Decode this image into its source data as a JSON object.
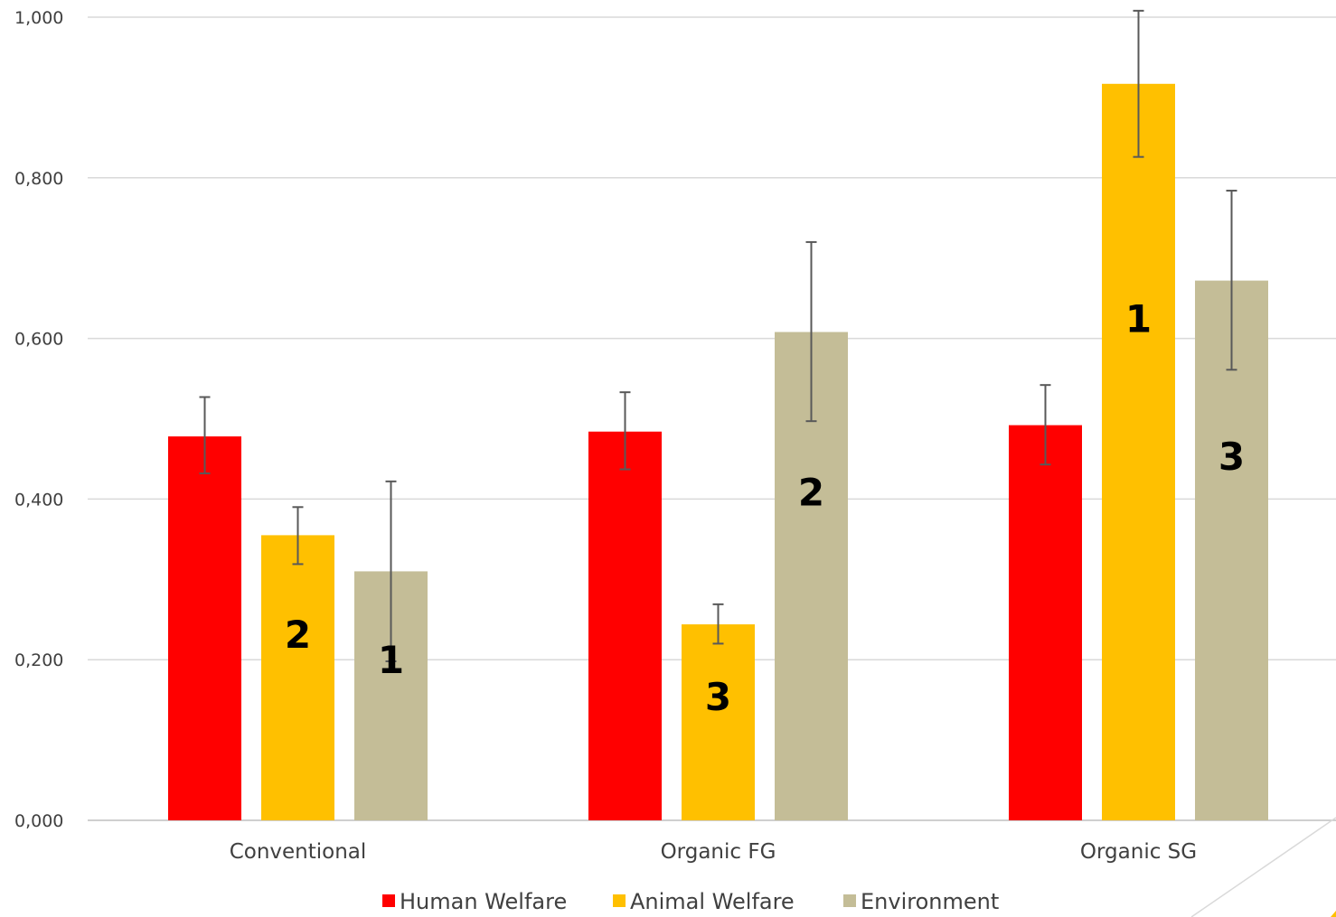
{
  "chart_data": {
    "type": "bar",
    "categories": [
      "Conventional",
      "Organic FG",
      "Organic SG"
    ],
    "series": [
      {
        "name": "Human Welfare",
        "color": "#FF0000",
        "values": [
          0.478,
          0.484,
          0.492
        ],
        "error_low": [
          0.432,
          0.437,
          0.443
        ],
        "error_high": [
          0.527,
          0.533,
          0.542
        ],
        "rank_labels": [
          "",
          "",
          ""
        ]
      },
      {
        "name": "Animal Welfare",
        "color": "#FFC000",
        "values": [
          0.355,
          0.244,
          0.917
        ],
        "error_low": [
          0.319,
          0.22,
          0.826
        ],
        "error_high": [
          0.39,
          0.269,
          1.008
        ],
        "rank_labels": [
          "2",
          "3",
          "1"
        ]
      },
      {
        "name": "Environment",
        "color": "#C4BD97",
        "values": [
          0.31,
          0.608,
          0.672
        ],
        "error_low": [
          0.198,
          0.497,
          0.561
        ],
        "error_high": [
          0.422,
          0.72,
          0.784
        ],
        "rank_labels": [
          "1",
          "2",
          "3"
        ]
      }
    ],
    "y_ticks": [
      "0,000",
      "0,200",
      "0,400",
      "0,600",
      "0,800",
      "1,000"
    ],
    "ylim": [
      0,
      1
    ],
    "grid": true,
    "legend_position": "bottom",
    "title": "",
    "xlabel": "",
    "ylabel": ""
  }
}
